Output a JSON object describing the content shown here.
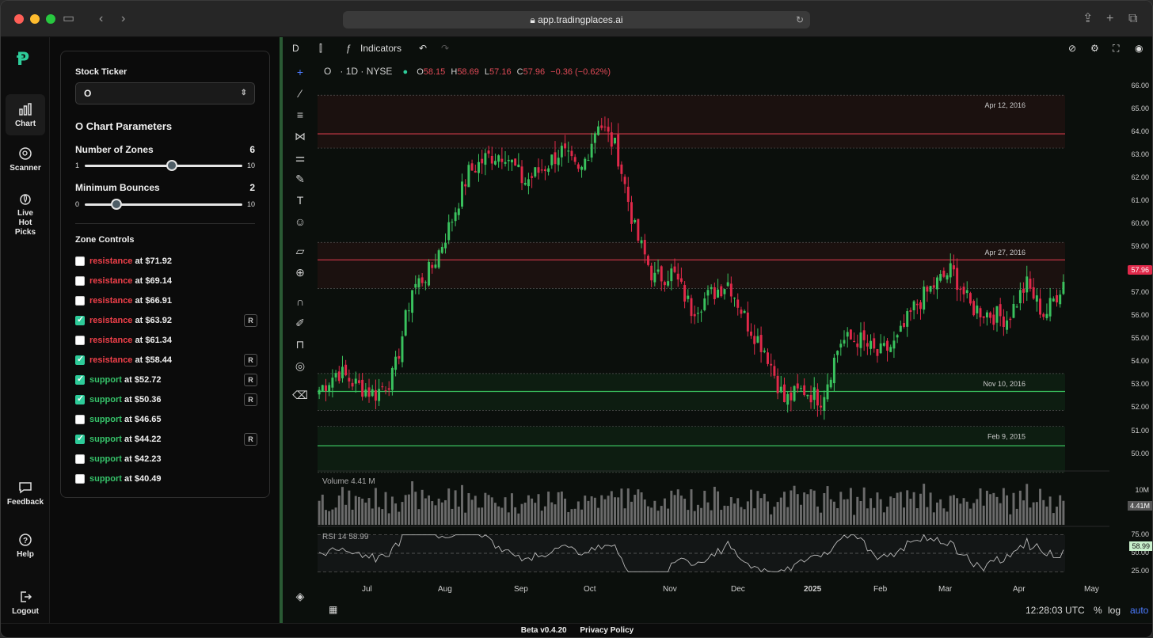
{
  "browser": {
    "url": "app.tradingplaces.ai"
  },
  "nav": {
    "items": [
      {
        "label": "Chart",
        "icon": "bar-chart-icon"
      },
      {
        "label": "Scanner",
        "icon": "scanner-icon"
      },
      {
        "label": "Live Hot Picks",
        "icon": "flame-icon"
      },
      {
        "label": "Feedback",
        "icon": "feedback-icon"
      },
      {
        "label": "Help",
        "icon": "help-icon"
      },
      {
        "label": "Logout",
        "icon": "logout-icon"
      }
    ]
  },
  "panel": {
    "ticker_label": "Stock Ticker",
    "ticker_value": "O",
    "params_title": "O Chart Parameters",
    "zones_label": "Number of Zones",
    "zones_value": "6",
    "zones_min": "1",
    "zones_max": "10",
    "zones_fraction": 0.555,
    "bounces_label": "Minimum Bounces",
    "bounces_value": "2",
    "bounces_min": "0",
    "bounces_max": "10",
    "bounces_fraction": 0.2,
    "controls_title": "Zone Controls",
    "zones": [
      {
        "type": "resistance",
        "price": "at $71.92",
        "checked": false,
        "badge": ""
      },
      {
        "type": "resistance",
        "price": "at $69.14",
        "checked": false,
        "badge": ""
      },
      {
        "type": "resistance",
        "price": "at $66.91",
        "checked": false,
        "badge": ""
      },
      {
        "type": "resistance",
        "price": "at $63.92",
        "checked": true,
        "badge": "R"
      },
      {
        "type": "resistance",
        "price": "at $61.34",
        "checked": false,
        "badge": ""
      },
      {
        "type": "resistance",
        "price": "at $58.44",
        "checked": true,
        "badge": "R"
      },
      {
        "type": "support",
        "price": "at $52.72",
        "checked": true,
        "badge": "R"
      },
      {
        "type": "support",
        "price": "at $50.36",
        "checked": true,
        "badge": "R"
      },
      {
        "type": "support",
        "price": "at $46.65",
        "checked": false,
        "badge": ""
      },
      {
        "type": "support",
        "price": "at $44.22",
        "checked": true,
        "badge": "R"
      },
      {
        "type": "support",
        "price": "at $42.23",
        "checked": false,
        "badge": ""
      },
      {
        "type": "support",
        "price": "at $40.49",
        "checked": false,
        "badge": ""
      }
    ]
  },
  "toolbar": {
    "interval": "D",
    "indicators": "Indicators"
  },
  "legend": {
    "symbol": "O",
    "meta": "· 1D · NYSE",
    "o_label": "O",
    "o": "58.15",
    "h_label": "H",
    "h": "58.69",
    "l_label": "L",
    "l": "57.16",
    "c_label": "C",
    "c": "57.96",
    "change": "−0.36 (−0.62%)"
  },
  "chart_data": {
    "type": "candlestick",
    "price_ticks": [
      "66.00",
      "65.00",
      "64.00",
      "63.00",
      "62.00",
      "61.00",
      "60.00",
      "59.00",
      "58.00",
      "57.00",
      "56.00",
      "55.00",
      "54.00",
      "53.00",
      "52.00",
      "51.00",
      "50.00"
    ],
    "last_price": "57.96",
    "zone_labels": [
      "Apr 12, 2016",
      "Apr 27, 2016",
      "Nov 10, 2016",
      "Feb 9, 2015"
    ],
    "zones": [
      {
        "label": "Apr 12, 2016",
        "kind": "resistance",
        "line": 63.92,
        "top": 65.6,
        "bottom": 63.3
      },
      {
        "label": "Apr 27, 2016",
        "kind": "resistance",
        "line": 58.44,
        "top": 59.2,
        "bottom": 57.2
      },
      {
        "label": "Nov 10, 2016",
        "kind": "support",
        "line": 52.72,
        "top": 53.5,
        "bottom": 51.9
      },
      {
        "label": "Feb 9, 2015",
        "kind": "support",
        "line": 50.36,
        "top": 51.2,
        "bottom": 49.2
      }
    ],
    "dates": [
      "Jul",
      "Aug",
      "Sep",
      "Oct",
      "Nov",
      "Dec",
      "2025",
      "Feb",
      "Mar",
      "Apr",
      "May"
    ],
    "close_path": [
      52.8,
      53.6,
      53.0,
      52.6,
      53.4,
      57.2,
      58.0,
      59.9,
      62.2,
      62.9,
      63.1,
      61.8,
      62.4,
      63.2,
      62.1,
      64.5,
      63.2,
      59.6,
      57.6,
      57.9,
      56.3,
      56.9,
      57.5,
      55.7,
      54.5,
      52.3,
      52.8,
      52.4,
      54.9,
      55.0,
      54.3,
      54.8,
      56.4,
      57.3,
      58.0,
      56.4,
      56.1,
      55.9,
      57.4,
      56.0,
      57.5
    ],
    "volume_label": "Volume",
    "volume_value": "4.41 M",
    "volume_axis": [
      "10M",
      "4.41M"
    ],
    "rsi_label": "RSI 14",
    "rsi_value": "58.99",
    "rsi_axis": [
      "75.00",
      "50.00",
      "25.00"
    ]
  },
  "status": {
    "time": "12:28:03 UTC",
    "pct": "%",
    "log": "log",
    "auto": "auto"
  },
  "footer": {
    "version": "Beta v0.4.20",
    "privacy": "Privacy Policy"
  }
}
